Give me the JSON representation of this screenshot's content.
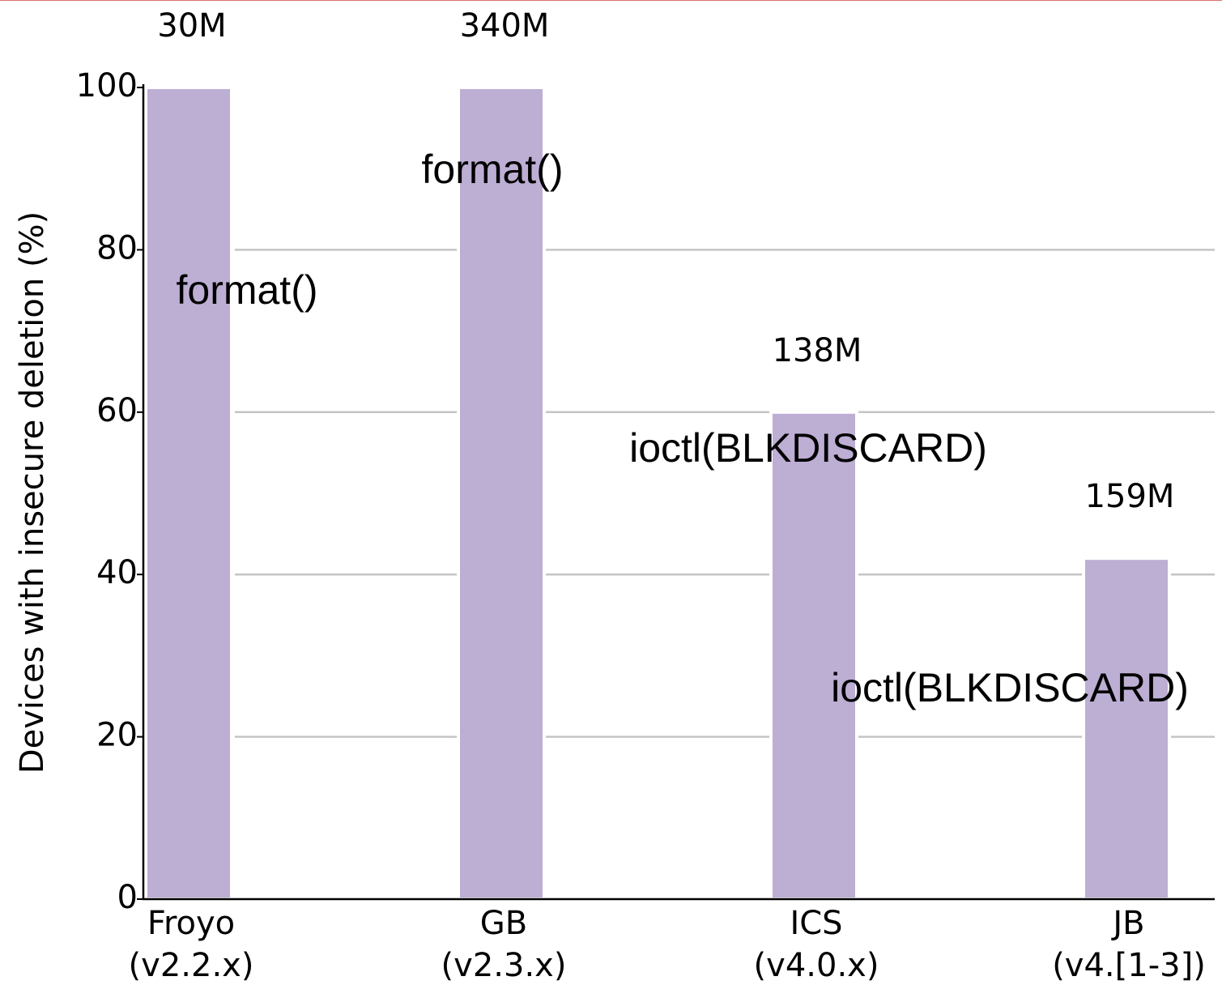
{
  "chart_data": {
    "type": "bar",
    "y_label": "Devices with insecure deletion (%)",
    "categories": [
      [
        "Froyo",
        "(v2.2.x)"
      ],
      [
        "GB",
        "(v2.3.x)"
      ],
      [
        "ICS",
        "(v4.0.x)"
      ],
      [
        "JB",
        "(v4.[1-3])"
      ]
    ],
    "values": [
      100,
      100,
      60,
      42
    ],
    "color": "#bdaed4",
    "device_counts": [
      "30M",
      "340M",
      "138M",
      "159M"
    ],
    "methods": [
      "format()",
      "format()",
      "ioctl(BLKDISCARD)",
      "ioctl(BLKDISCARD)"
    ],
    "method_color": "#ff0000",
    "ylim": [
      0,
      100
    ],
    "yticks": [
      0,
      20,
      40,
      60,
      80,
      100
    ],
    "grid": true
  }
}
